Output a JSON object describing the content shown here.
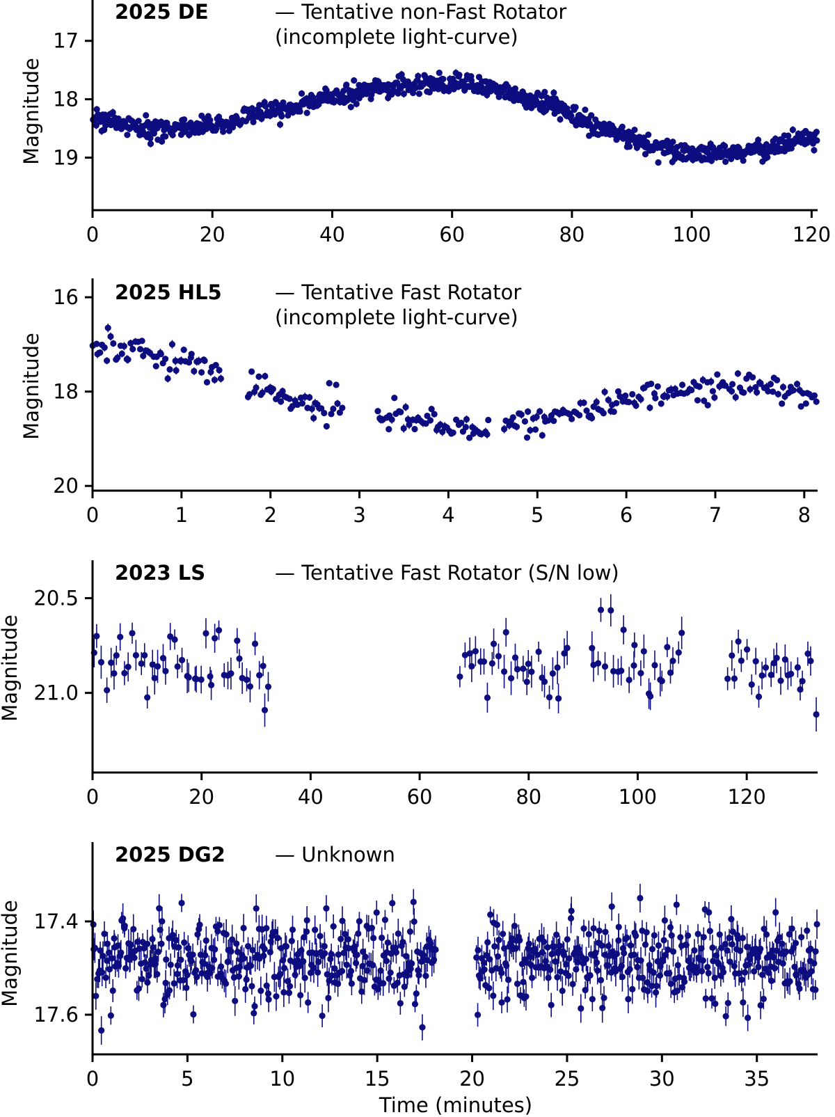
{
  "figure": {
    "xlabel_bottom": "Time (minutes)"
  },
  "colors": {
    "marker": "#0d0d80",
    "axis": "#000000"
  },
  "chart_data": [
    {
      "type": "scatter",
      "object": "2025 DE",
      "description": "— Tentative non-Fast Rotator",
      "description_2": "(incomplete light-curve)",
      "ylabel": "Magnitude",
      "xlabel": "",
      "xlim": [
        0,
        121
      ],
      "ylim": [
        19.9,
        16.3
      ],
      "y_inverted": true,
      "xticks": [
        0,
        20,
        40,
        60,
        80,
        100,
        120
      ],
      "yticks": [
        17,
        18,
        19
      ],
      "ytick_labels": [
        "17",
        "18",
        "19"
      ],
      "curve": {
        "model": "sinusoid",
        "x": [
          0,
          10,
          20,
          30,
          40,
          50,
          57,
          65,
          75,
          85,
          95,
          100,
          110,
          121
        ],
        "y": [
          18.35,
          18.5,
          18.45,
          18.2,
          17.95,
          17.78,
          17.72,
          17.78,
          18.05,
          18.5,
          18.85,
          18.95,
          18.9,
          18.65
        ],
        "scatter": 0.08,
        "error": 0.05,
        "n_points": 900,
        "gaps": []
      }
    },
    {
      "type": "scatter",
      "object": "2025 HL5",
      "description": "— Tentative Fast Rotator",
      "description_2": "(incomplete light-curve)",
      "ylabel": "Magnitude",
      "xlabel": "",
      "xlim": [
        0,
        8.15
      ],
      "ylim": [
        20.1,
        15.6
      ],
      "y_inverted": true,
      "xticks": [
        0,
        1,
        2,
        3,
        4,
        5,
        6,
        7,
        8
      ],
      "yticks": [
        16,
        18,
        20
      ],
      "ytick_labels": [
        "16",
        "18",
        "20"
      ],
      "curve": {
        "model": "piecewise",
        "x": [
          0,
          0.5,
          1,
          1.5,
          1.8,
          2.5,
          3.3,
          4.0,
          4.5,
          5.0,
          5.5,
          6.0,
          6.5,
          7.0,
          7.5,
          8.15
        ],
        "y": [
          17.05,
          17.2,
          17.4,
          17.55,
          17.9,
          18.3,
          18.5,
          18.8,
          18.75,
          18.6,
          18.4,
          18.15,
          18.05,
          17.95,
          17.95,
          18.05
        ],
        "scatter": 0.15,
        "error": 0.07,
        "n_points": 330,
        "gaps": [
          [
            1.45,
            1.72
          ],
          [
            2.82,
            3.18
          ],
          [
            4.48,
            4.62
          ]
        ]
      }
    },
    {
      "type": "scatter",
      "object": "2023 LS",
      "description": "— Tentative Fast Rotator (S/N low)",
      "description_2": "",
      "ylabel": "Magnitude",
      "xlabel": "",
      "xlim": [
        0,
        133
      ],
      "ylim": [
        21.42,
        20.3
      ],
      "y_inverted": true,
      "xticks": [
        0,
        20,
        40,
        60,
        80,
        100,
        120
      ],
      "yticks": [
        20.5,
        21.0
      ],
      "ytick_labels": [
        "20.5",
        "21.0"
      ],
      "curve": {
        "model": "flat",
        "x": [
          0,
          133
        ],
        "y": [
          20.85,
          20.85
        ],
        "scatter": 0.1,
        "error": 0.07,
        "n_points": 190,
        "gaps": [
          [
            32.5,
            67
          ],
          [
            88,
            91.5
          ],
          [
            109,
            116
          ]
        ]
      }
    },
    {
      "type": "scatter",
      "object": "2025 DG2",
      "description": "— Unknown",
      "description_2": "",
      "ylabel": "Magnitude",
      "xlabel": "Time (minutes)",
      "xlim": [
        0,
        38.2
      ],
      "ylim": [
        17.685,
        17.23
      ],
      "y_inverted": true,
      "xticks": [
        0,
        5,
        10,
        15,
        20,
        25,
        30,
        35
      ],
      "yticks": [
        17.4,
        17.6
      ],
      "ytick_labels": [
        "17.4",
        "17.6"
      ],
      "curve": {
        "model": "flat",
        "x": [
          0,
          38.2
        ],
        "y": [
          17.48,
          17.48
        ],
        "scatter": 0.045,
        "error": 0.025,
        "n_points": 700,
        "gaps": [
          [
            18.1,
            20.2
          ]
        ]
      }
    }
  ]
}
